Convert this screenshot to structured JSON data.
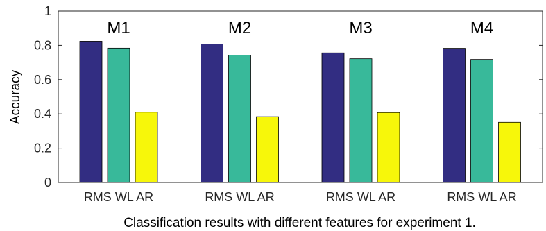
{
  "chart_data": {
    "type": "bar",
    "caption": "Classification results with different features for experiment 1.",
    "ylabel": "Accuracy",
    "ylim": [
      0,
      1
    ],
    "yticks": [
      "0",
      "0.2",
      "0.4",
      "0.6",
      "0.8",
      "1"
    ],
    "groups": [
      {
        "label": "M1",
        "xlabel": "RMS WL AR",
        "values": [
          0.824,
          0.784,
          0.41
        ]
      },
      {
        "label": "M2",
        "xlabel": "RMS WL AR",
        "values": [
          0.808,
          0.743,
          0.384
        ]
      },
      {
        "label": "M3",
        "xlabel": "RMS WL AR",
        "values": [
          0.756,
          0.722,
          0.408
        ]
      },
      {
        "label": "M4",
        "xlabel": "RMS WL AR",
        "values": [
          0.783,
          0.718,
          0.351
        ]
      }
    ],
    "features": [
      "RMS",
      "WL",
      "AR"
    ],
    "colors": [
      "#322d82",
      "#38b99a",
      "#f7f70a"
    ],
    "grid": false
  }
}
